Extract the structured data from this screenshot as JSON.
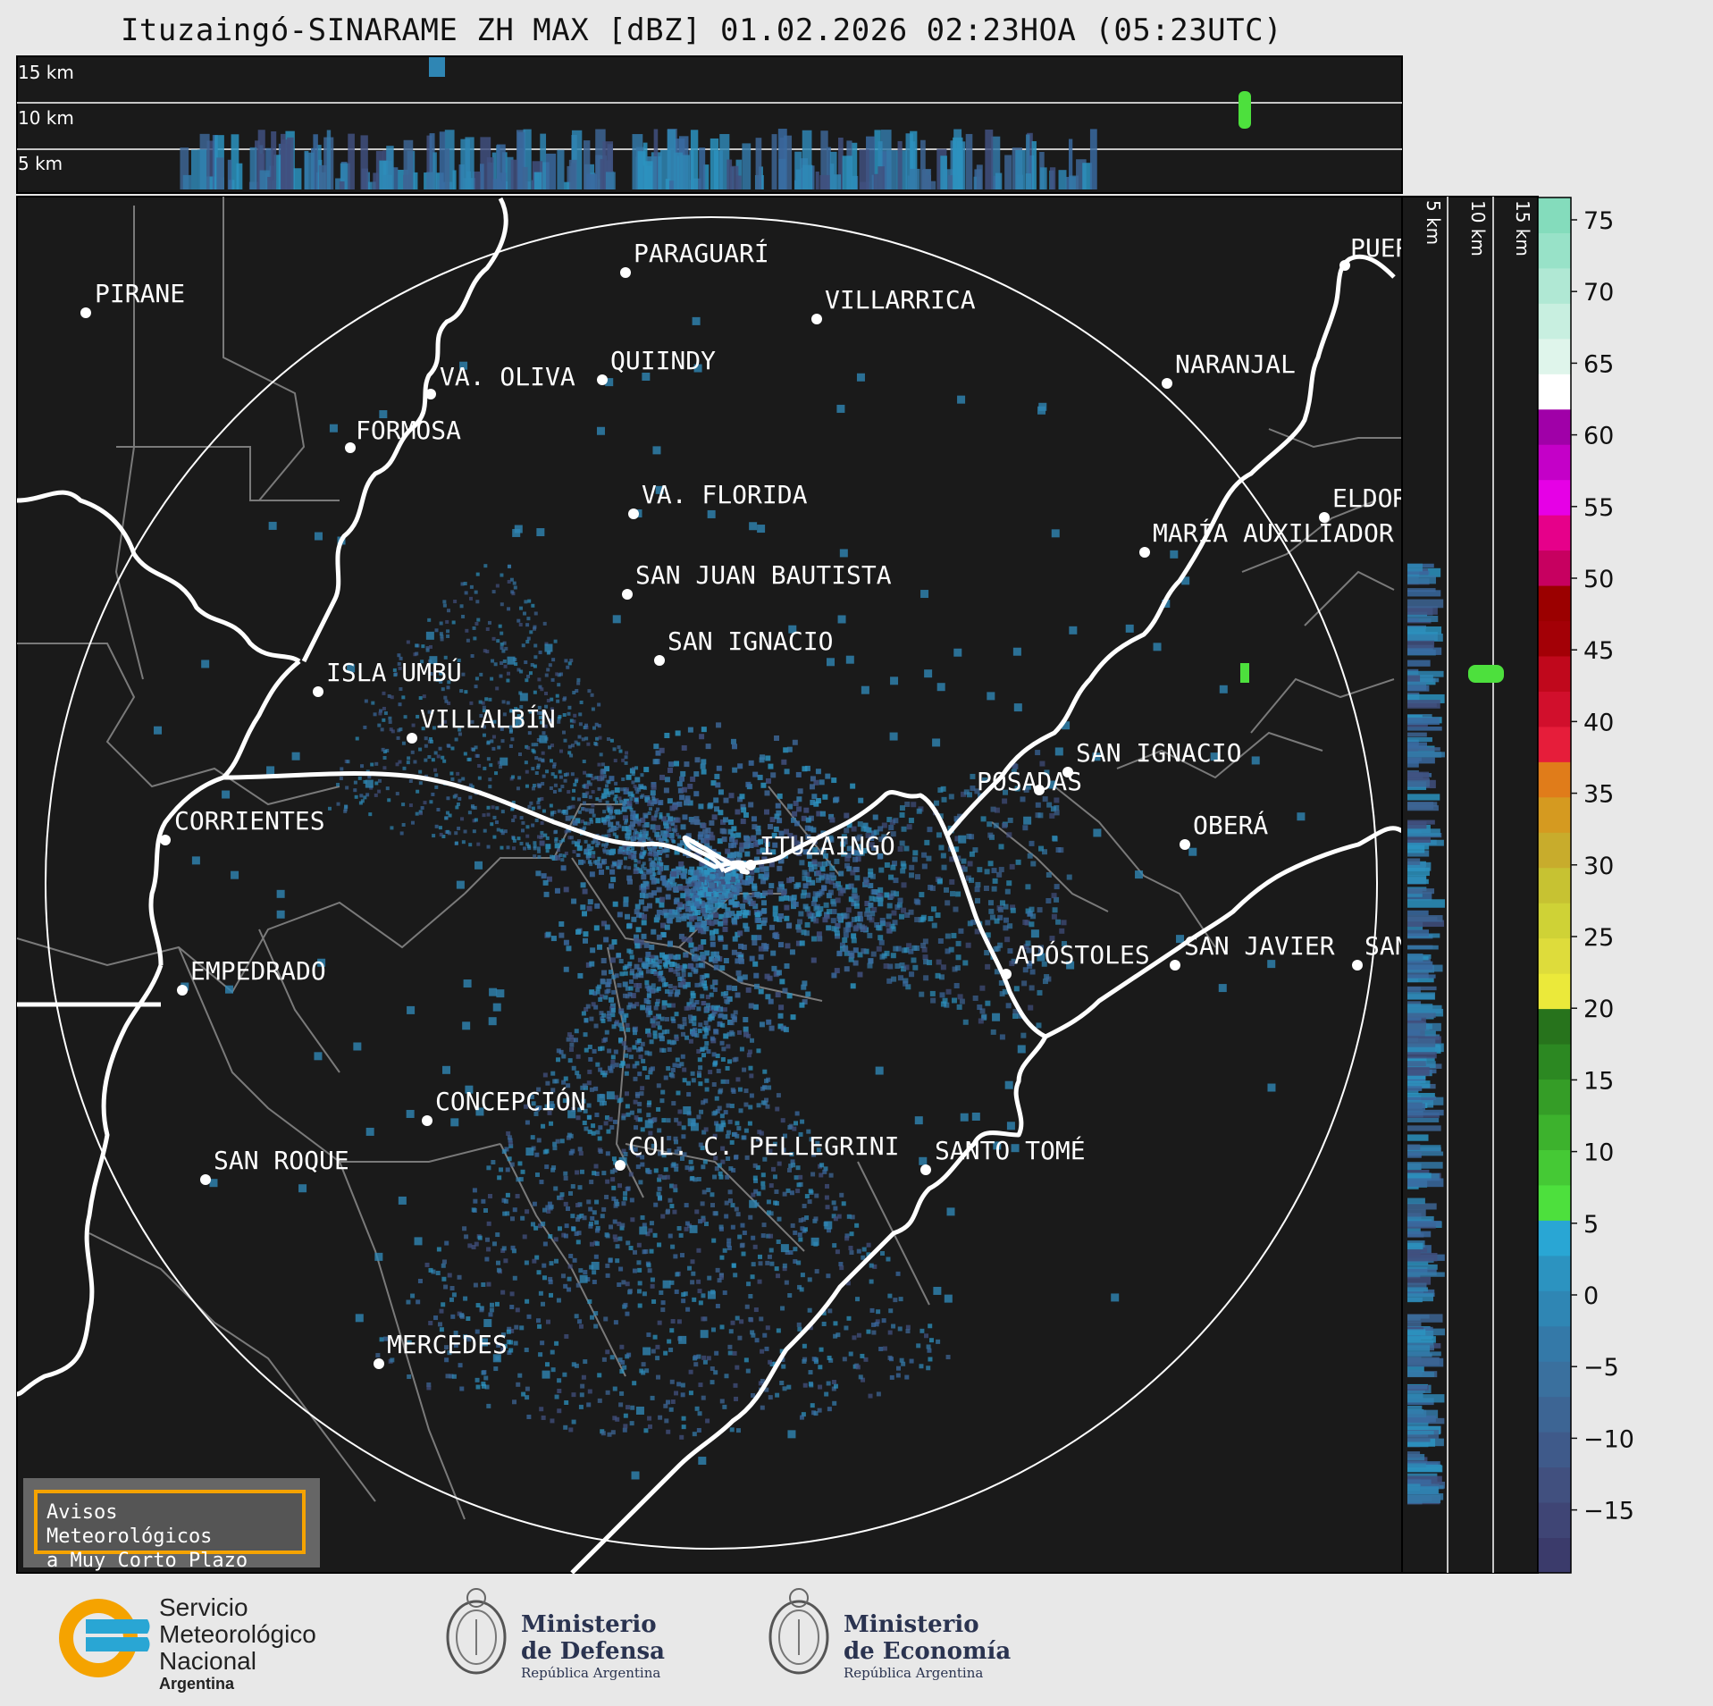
{
  "title": "Ituzaingó-SINARAME ZH MAX [dBZ] 01.02.2026 02:23HOA (05:23UTC)",
  "top_profile_labels": [
    "15 km",
    "10 km",
    "5 km"
  ],
  "side_profile_labels": [
    "5 km",
    "10 km",
    "15 km"
  ],
  "colorbar": {
    "ticks": [
      "75",
      "70",
      "65",
      "60",
      "55",
      "50",
      "45",
      "40",
      "35",
      "30",
      "25",
      "20",
      "15",
      "10",
      "5",
      "0",
      "−5",
      "−10",
      "−15"
    ],
    "colors": [
      "#3b3b6b",
      "#3f4575",
      "#41507f",
      "#3f5a8a",
      "#3d6594",
      "#3a709e",
      "#3479a8",
      "#2f86b4",
      "#2c93c0",
      "#29a6d4",
      "#4de03d",
      "#45c935",
      "#3db22d",
      "#359d27",
      "#2c8822",
      "#27731c",
      "#ebe93a",
      "#dedc3b",
      "#cfd236",
      "#c7c232",
      "#c8ac2c",
      "#d59a20",
      "#e07c1a",
      "#e61d3a",
      "#d10f2c",
      "#c0081c",
      "#a30006",
      "#9b0000",
      "#c70060",
      "#e6008a",
      "#e600e6",
      "#c400c8",
      "#a000a8",
      "#ffffff",
      "#dff5eb",
      "#c8efe0",
      "#b0e8d4",
      "#98e2c8",
      "#84dcbc"
    ]
  },
  "cities": [
    {
      "name": "PIRANE"
    },
    {
      "name": "PARAGUARÍ"
    },
    {
      "name": "VILLARRICA"
    },
    {
      "name": "QUIINDY"
    },
    {
      "name": "VA. OLIVA"
    },
    {
      "name": "NARANJAL"
    },
    {
      "name": "FORMOSA"
    },
    {
      "name": "VA. FLORIDA"
    },
    {
      "name": "ELDOR"
    },
    {
      "name": "MARÍA AUXILIADOR"
    },
    {
      "name": "SAN JUAN BAUTISTA"
    },
    {
      "name": "SAN IGNACIO"
    },
    {
      "name": "ISLA UMBÚ"
    },
    {
      "name": "VILLALBÍN"
    },
    {
      "name": "SAN IGNACIO"
    },
    {
      "name": "POSADAS"
    },
    {
      "name": "CORRIENTES"
    },
    {
      "name": "ITUZAINGÓ"
    },
    {
      "name": "OBERÁ"
    },
    {
      "name": "EMPEDRADO"
    },
    {
      "name": "APÓSTOLES"
    },
    {
      "name": "SAN JAVIER"
    },
    {
      "name": "SAN"
    },
    {
      "name": "CONCEPCIÓN"
    },
    {
      "name": "COL. C. PELLEGRINI"
    },
    {
      "name": "SANTO TOMÉ"
    },
    {
      "name": "SAN ROQUE"
    },
    {
      "name": "MERCEDES"
    },
    {
      "name": "PUER"
    }
  ],
  "banner": {
    "line1": "Avisos Meteorológicos",
    "line2": "a Muy Corto Plazo"
  },
  "logos": {
    "smn": {
      "line1": "Servicio",
      "line2": "Meteorológico",
      "line3": "Nacional",
      "line4": "Argentina"
    },
    "defensa": {
      "line1": "Ministerio",
      "line2": "de Defensa",
      "line3": "República Argentina"
    },
    "economia": {
      "line1": "Ministerio",
      "line2": "de Economía",
      "line3": "República Argentina"
    }
  }
}
